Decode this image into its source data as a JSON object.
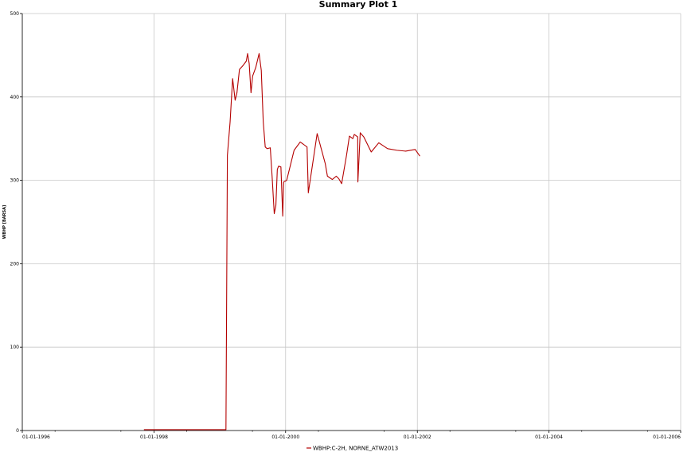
{
  "chart_data": {
    "type": "line",
    "title": "Summary Plot 1",
    "ylabel": "WBHP [BARSA]",
    "xlabel": "",
    "ylim": [
      0,
      500
    ],
    "yticks": [
      0,
      100,
      200,
      300,
      400,
      500
    ],
    "yticks_labels": [
      "0",
      "100",
      "200",
      "300",
      "400",
      "500"
    ],
    "xlim": [
      "1996-01-01",
      "2006-01-01"
    ],
    "xticks": [
      "1996-01-01",
      "1998-01-01",
      "2000-01-01",
      "2002-01-01",
      "2004-01-01",
      "2006-01-01"
    ],
    "xticks_labels": [
      "01-01-1996",
      "01-01-1998",
      "01-01-2000",
      "01-01-2002",
      "01-01-2004",
      "01-01-2006"
    ],
    "grid": true,
    "legend": "bottom-center",
    "series": [
      {
        "name": "WBHP:C-2H, NORNE_ATW2013",
        "color": "#b40000",
        "points": [
          [
            "1997-11-06",
            1
          ],
          [
            "1999-02-04",
            1
          ],
          [
            "1999-02-12",
            330
          ],
          [
            "1999-02-27",
            370
          ],
          [
            "1999-03-13",
            422
          ],
          [
            "1999-03-27",
            396
          ],
          [
            "1999-04-06",
            405
          ],
          [
            "1999-04-20",
            433
          ],
          [
            "1999-05-11",
            438
          ],
          [
            "1999-05-28",
            443
          ],
          [
            "1999-06-04",
            452
          ],
          [
            "1999-06-13",
            440
          ],
          [
            "1999-06-23",
            405
          ],
          [
            "1999-07-02",
            425
          ],
          [
            "1999-07-19",
            435
          ],
          [
            "1999-08-07",
            452
          ],
          [
            "1999-08-19",
            432
          ],
          [
            "1999-08-30",
            370
          ],
          [
            "1999-09-10",
            340
          ],
          [
            "1999-09-20",
            338
          ],
          [
            "1999-10-08",
            339
          ],
          [
            "1999-10-18",
            305
          ],
          [
            "1999-10-30",
            260
          ],
          [
            "1999-11-08",
            270
          ],
          [
            "1999-11-16",
            313
          ],
          [
            "1999-11-23",
            317
          ],
          [
            "1999-12-06",
            316
          ],
          [
            "1999-12-16",
            257
          ],
          [
            "1999-12-21",
            298
          ],
          [
            "2000-01-07",
            300
          ],
          [
            "2000-02-17",
            336
          ],
          [
            "2000-03-22",
            346
          ],
          [
            "2000-04-29",
            340
          ],
          [
            "2000-05-06",
            285
          ],
          [
            "2000-06-24",
            356
          ],
          [
            "2000-08-08",
            320
          ],
          [
            "2000-08-20",
            305
          ],
          [
            "2000-09-16",
            301
          ],
          [
            "2000-10-08",
            305
          ],
          [
            "2000-10-22",
            302
          ],
          [
            "2000-11-07",
            296
          ],
          [
            "2000-12-04",
            330
          ],
          [
            "2000-12-20",
            353
          ],
          [
            "2001-01-08",
            350
          ],
          [
            "2001-01-16",
            355
          ],
          [
            "2001-02-04",
            352
          ],
          [
            "2001-02-18",
            357
          ],
          [
            "2001-03-10",
            352
          ],
          [
            "2001-04-20",
            334
          ],
          [
            "2001-06-01",
            345
          ],
          [
            "2001-07-20",
            338
          ],
          [
            "2001-09-10",
            336
          ],
          [
            "2001-10-28",
            335
          ],
          [
            "2001-12-20",
            337
          ],
          [
            "2002-01-15",
            329
          ],
          [
            "2001-02-05",
            298
          ]
        ]
      }
    ]
  },
  "legend_label": "WBHP:C-2H, NORNE_ATW2013"
}
